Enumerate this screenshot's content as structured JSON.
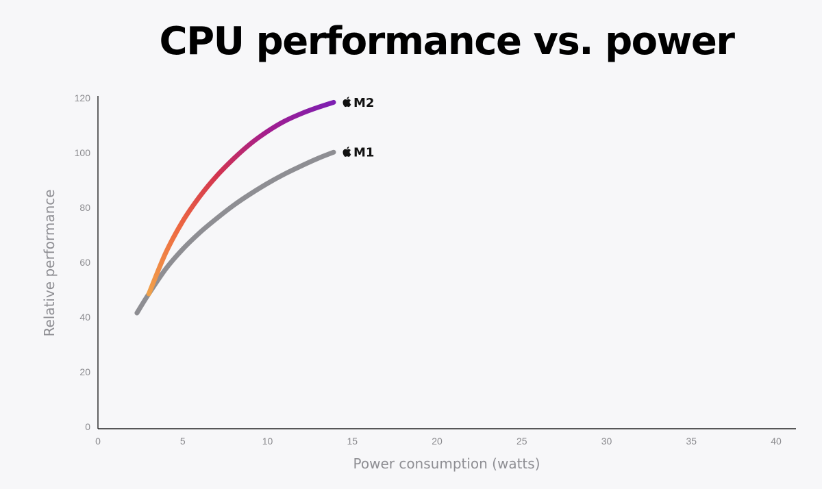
{
  "chart_data": {
    "type": "line",
    "title": "CPU performance vs. power",
    "xlabel": "Power consumption (watts)",
    "ylabel": "Relative performance",
    "xlim": [
      0,
      40
    ],
    "ylim": [
      0,
      120
    ],
    "x_ticks": [
      0,
      5,
      10,
      15,
      20,
      25,
      30,
      35,
      40
    ],
    "y_ticks": [
      0,
      20,
      40,
      60,
      80,
      100,
      120
    ],
    "grid": false,
    "series": [
      {
        "name": "M1",
        "color": "#8e8e93",
        "label_icon": "apple-logo-icon",
        "x": [
          2.3,
          3,
          4,
          5,
          6,
          7,
          8,
          9,
          10,
          11,
          12,
          13,
          13.9
        ],
        "y": [
          41.5,
          48.5,
          57.6,
          64.8,
          70.8,
          76.0,
          80.8,
          85.0,
          88.8,
          92.2,
          95.2,
          98.0,
          100.2
        ]
      },
      {
        "name": "M2",
        "gradient": [
          "#f0a14a",
          "#ee6a41",
          "#d2344f",
          "#a21d8f",
          "#7c1fb2"
        ],
        "label_icon": "apple-logo-icon",
        "x": [
          3,
          4,
          5,
          6,
          7,
          8,
          9,
          10,
          11,
          12,
          13,
          13.9
        ],
        "y": [
          48.5,
          63.5,
          75.0,
          84.0,
          91.5,
          97.8,
          103.3,
          107.8,
          111.5,
          114.3,
          116.6,
          118.4
        ]
      }
    ]
  }
}
